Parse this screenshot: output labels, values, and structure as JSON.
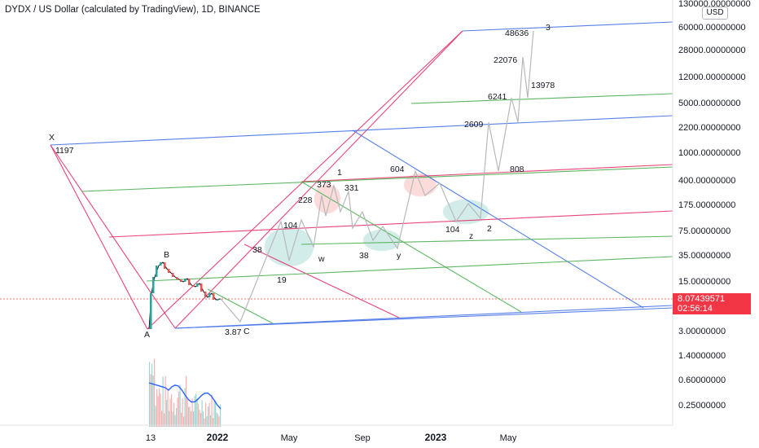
{
  "header": {
    "title": "DYDX / US Dollar (calculated by TradingView), 1D, BINANCE",
    "currency": "USD"
  },
  "price_badge": {
    "price": "8.07439571",
    "countdown": "02:56:14",
    "color": "#f23645"
  },
  "chart_data": {
    "type": "line",
    "symbol": "DYDXUSD",
    "scale": "log",
    "y_ticks": [
      "130000.00000000",
      "60000.00000000",
      "28000.00000000",
      "12000.00000000",
      "5000.00000000",
      "2200.00000000",
      "1000.00000000",
      "400.00000000",
      "175.00000000",
      "75.00000000",
      "35.00000000",
      "15.00000000",
      "3.00000000",
      "1.40000000",
      "0.60000000",
      "0.25000000"
    ],
    "x_ticks": [
      "13",
      "2022",
      "May",
      "Sep",
      "2023",
      "May"
    ],
    "wave_labels": [
      "X",
      "1197",
      "A",
      "B",
      "3.87",
      "C",
      "38",
      "104",
      "19",
      "228",
      "373",
      "1",
      "331",
      "w",
      "604",
      "38",
      "y",
      "104",
      "z",
      "2",
      "2609",
      "808",
      "6241",
      "22076",
      "48636",
      "3",
      "13978"
    ],
    "colors": {
      "pitchfork_pink": "#e8316a",
      "channel_blue": "#4472ea",
      "green_line": "#4caf50",
      "projection_grey": "#b8b8b8",
      "volume_green": "#26a69a",
      "volume_red": "#ef5350"
    }
  }
}
